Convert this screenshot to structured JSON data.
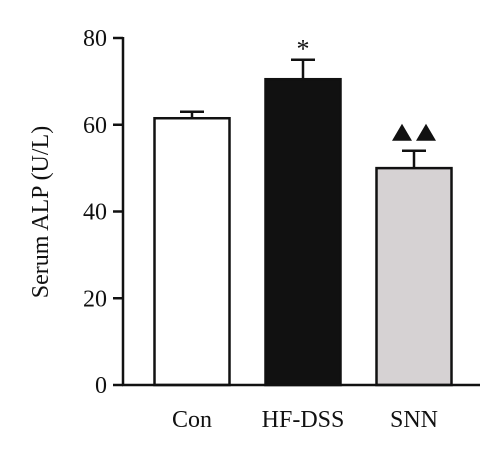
{
  "chart_data": {
    "type": "bar",
    "categories": [
      "Con",
      "HF-DSS",
      "SNN"
    ],
    "values": [
      61.5,
      70.5,
      50.0
    ],
    "errors": [
      1.5,
      4.5,
      4.0
    ],
    "annotations": [
      "",
      "*",
      "▲▲"
    ],
    "ylabel": "Serum ALP (U/L)",
    "xlabel": "",
    "ylim": [
      0,
      80
    ],
    "yticks": [
      "0",
      "20",
      "40",
      "60",
      "80"
    ],
    "grid": false,
    "bar_fills": [
      "#ffffff",
      "#111111",
      "#d6d2d3"
    ],
    "bar_stroke": "#111111"
  }
}
